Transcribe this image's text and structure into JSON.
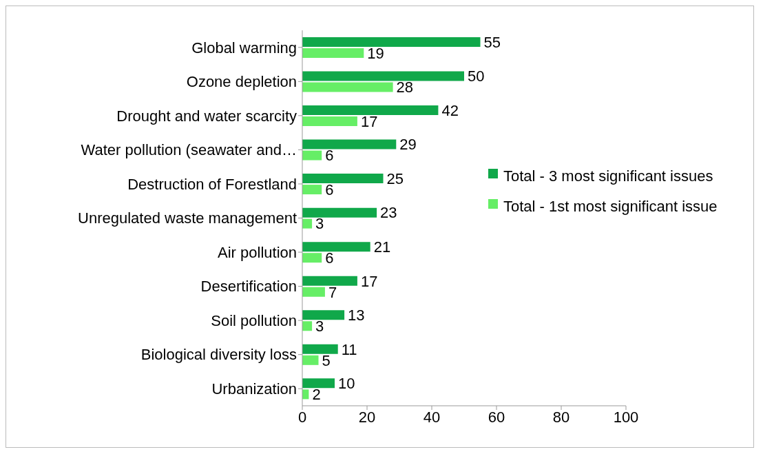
{
  "chart_data": {
    "type": "bar",
    "orientation": "horizontal",
    "categories": [
      "Global warming",
      "Ozone depletion",
      "Drought and water scarcity",
      "Water pollution (seawater and…",
      "Destruction of Forestland",
      "Unregulated waste management",
      "Air pollution",
      "Desertification",
      "Soil pollution",
      "Biological diversity loss",
      "Urbanization"
    ],
    "series": [
      {
        "name": "Total - 3 most significant issues",
        "color": "#10a84a",
        "values": [
          55,
          50,
          42,
          29,
          25,
          23,
          21,
          17,
          13,
          11,
          10
        ]
      },
      {
        "name": "Total - 1st most significant issue",
        "color": "#66ee66",
        "values": [
          19,
          28,
          17,
          6,
          6,
          3,
          6,
          7,
          3,
          5,
          2
        ]
      }
    ],
    "xlim": [
      0,
      100
    ],
    "xticks": [
      0,
      20,
      40,
      60,
      80,
      100
    ],
    "data_labels": true,
    "legend": "right"
  }
}
